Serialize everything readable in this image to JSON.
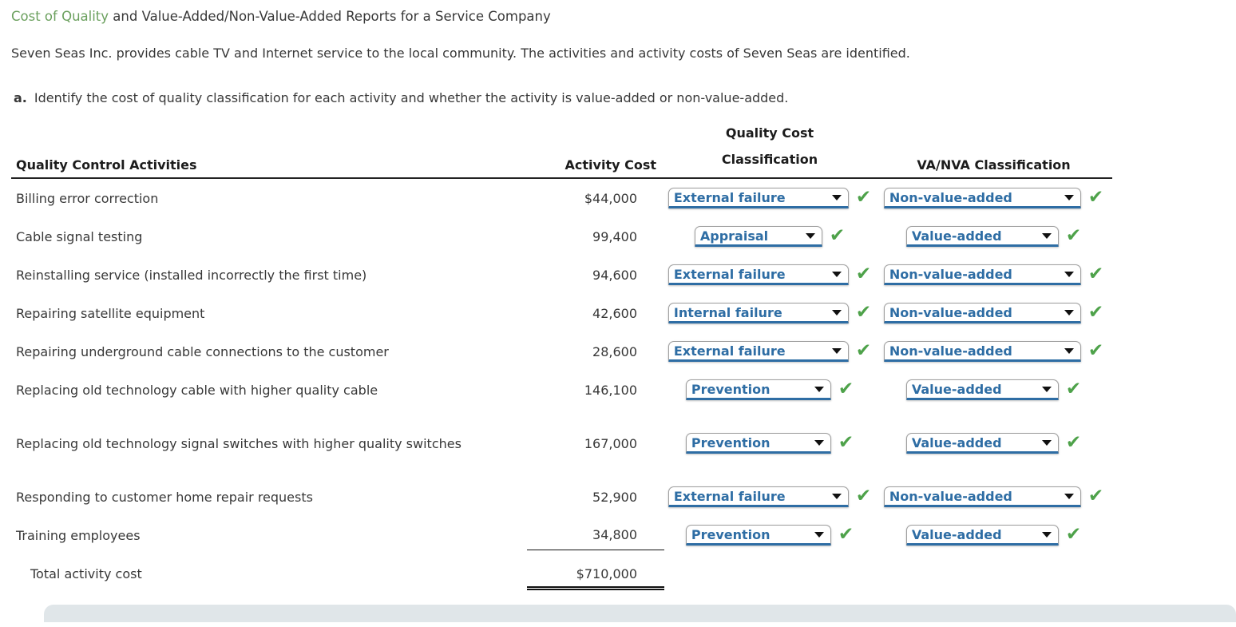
{
  "page": {
    "title": {
      "link_text": "Cost of Quality",
      "rest_text": " and Value-Added/Non-Value-Added Reports for a Service Company"
    },
    "intro": "Seven Seas Inc. provides cable TV and Internet service to the local community. The activities and activity costs of Seven Seas are identified.",
    "step": {
      "label": "a.",
      "text": "Identify the cost of quality classification for each activity and whether the activity is value-added or non-value-added."
    }
  },
  "table": {
    "headers": {
      "activities": "Quality Control Activities",
      "cost": "Activity Cost",
      "quality_cost_line1": "Quality Cost",
      "quality_cost_line2": "Classification",
      "va_nva": "VA/NVA Classification"
    },
    "rows": [
      {
        "activity": "Billing error correction",
        "cost": "$44,000",
        "quality_cost_classification": "External failure",
        "va_nva_classification": "Non-value-added"
      },
      {
        "activity": "Cable signal testing",
        "cost": "99,400",
        "quality_cost_classification": "Appraisal",
        "va_nva_classification": "Value-added"
      },
      {
        "activity": "Reinstalling service (installed incorrectly the first time)",
        "cost": "94,600",
        "quality_cost_classification": "External failure",
        "va_nva_classification": "Non-value-added"
      },
      {
        "activity": "Repairing satellite equipment",
        "cost": "42,600",
        "quality_cost_classification": "Internal failure",
        "va_nva_classification": "Non-value-added"
      },
      {
        "activity": "Repairing underground cable connections to the customer",
        "cost": "28,600",
        "quality_cost_classification": "External failure",
        "va_nva_classification": "Non-value-added"
      },
      {
        "activity": "Replacing old technology cable with higher quality cable",
        "cost": "146,100",
        "quality_cost_classification": "Prevention",
        "va_nva_classification": "Value-added"
      },
      {
        "activity": "Replacing old technology signal switches with higher quality switches",
        "cost": "167,000",
        "quality_cost_classification": "Prevention",
        "va_nva_classification": "Value-added"
      },
      {
        "activity": "Responding to customer home repair requests",
        "cost": "52,900",
        "quality_cost_classification": "External failure",
        "va_nva_classification": "Non-value-added"
      },
      {
        "activity": "Training employees",
        "cost": "34,800",
        "quality_cost_classification": "Prevention",
        "va_nva_classification": "Value-added"
      }
    ],
    "total": {
      "label": "Total activity cost",
      "value": "$710,000"
    }
  },
  "icons": {
    "check": "✔",
    "dropdown_arrow": "▼"
  },
  "colors": {
    "title_link": "#6ba05e",
    "dropdown_text": "#2e6da4",
    "dropdown_underline": "#2e6da4",
    "check": "#4ea24a",
    "bottom_panel": "#e0e6e9"
  }
}
